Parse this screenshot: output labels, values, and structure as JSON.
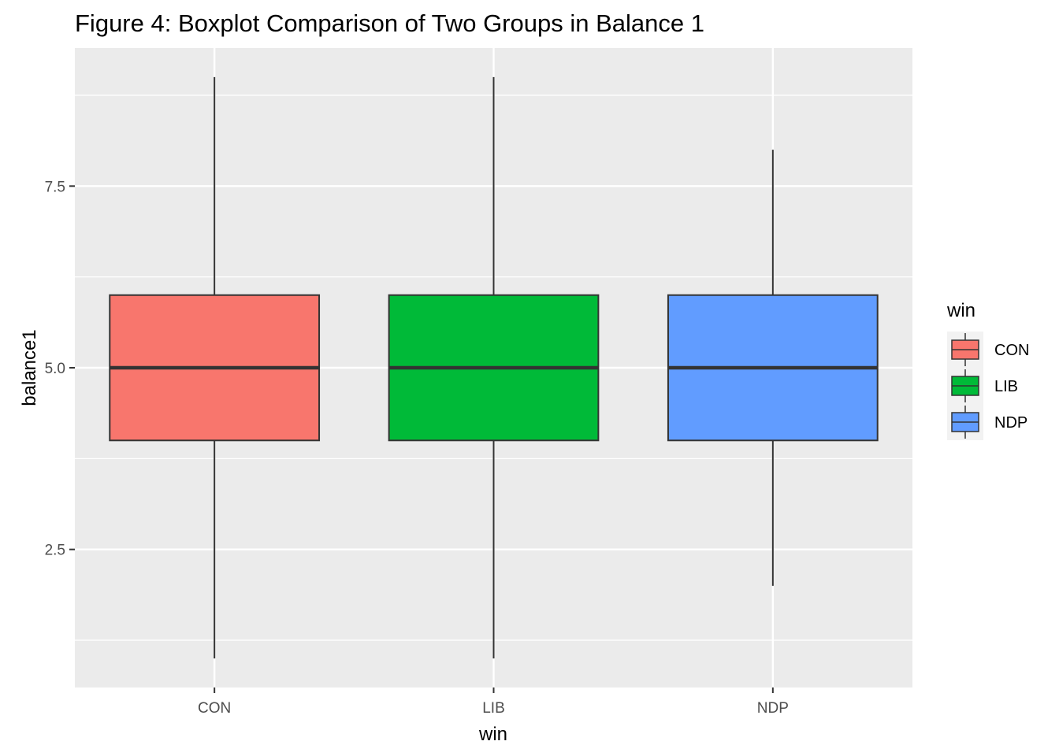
{
  "chart_data": {
    "type": "boxplot",
    "title": "Figure 4: Boxplot Comparison of Two Groups in Balance 1",
    "xlabel": "win",
    "ylabel": "balance1",
    "categories": [
      "CON",
      "LIB",
      "NDP"
    ],
    "y_ticks": [
      2.5,
      5.0,
      7.5
    ],
    "y_tick_labels": [
      "2.5",
      "5.0",
      "7.5"
    ],
    "ylim": [
      0.6,
      9.4
    ],
    "grid": true,
    "boxes": [
      {
        "category": "CON",
        "min": 1,
        "q1": 4,
        "median": 5,
        "q3": 6,
        "max": 9,
        "color": "#F8766D"
      },
      {
        "category": "LIB",
        "min": 1,
        "q1": 4,
        "median": 5,
        "q3": 6,
        "max": 9,
        "color": "#00BA38"
      },
      {
        "category": "NDP",
        "min": 2,
        "q1": 4,
        "median": 5,
        "q3": 6,
        "max": 8,
        "color": "#619CFF"
      }
    ],
    "legend": {
      "title": "win",
      "position": "right",
      "entries": [
        "CON",
        "LIB",
        "NDP"
      ]
    },
    "colors": {
      "panel_background": "#EBEBEB",
      "grid_line": "#FFFFFF",
      "box_outline": "#333333"
    }
  }
}
